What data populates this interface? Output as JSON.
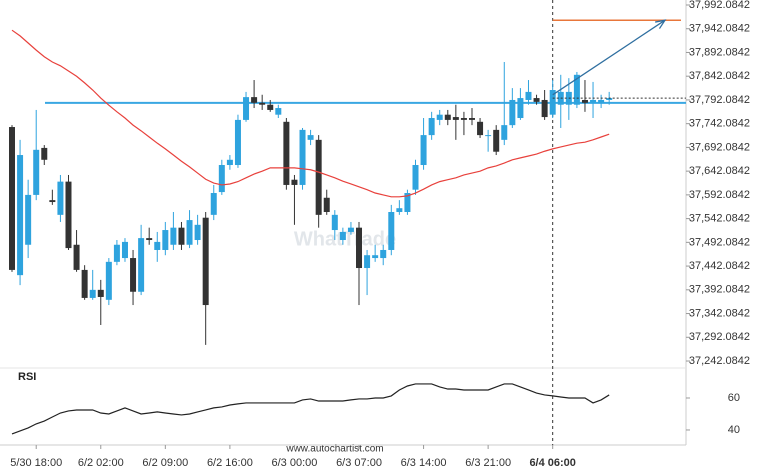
{
  "chart_data": [
    {
      "type": "candlestick",
      "categories": [
        null,
        null,
        null,
        "5/30 18:00",
        null,
        null,
        null,
        null,
        null,
        null,
        null,
        "6/2 02:00",
        null,
        null,
        null,
        null,
        null,
        null,
        null,
        "6/2 09:00",
        null,
        null,
        null,
        null,
        null,
        null,
        null,
        "6/2 16:00",
        null,
        null,
        null,
        null,
        null,
        null,
        null,
        "6/3 00:00",
        null,
        null,
        null,
        null,
        null,
        null,
        null,
        "6/3 07:00",
        null,
        null,
        null,
        null,
        null,
        null,
        null,
        "6/3 14:00",
        null,
        null,
        null,
        null,
        null,
        null,
        null,
        "6/3 21:00",
        null,
        null,
        null,
        null,
        null,
        null,
        null,
        "6/4 06:00",
        null,
        null,
        null,
        null,
        null,
        null,
        null
      ],
      "candles": {
        "up_color": "#2ea3de",
        "down_color": "#333333",
        "open": [
          37735,
          37423,
          37487,
          37592,
          37691,
          37581,
          37550,
          37620,
          37487,
          37434,
          37375,
          37392,
          37371,
          37451,
          37459,
          37459,
          37388,
          37501,
          37476,
          37476,
          37487,
          37523,
          37487,
          37497,
          37544,
          37550,
          37598,
          37655,
          37655,
          37750,
          37798,
          37786,
          37782,
          37761,
          37746,
          37624,
          37613,
          37708,
          37708,
          37586,
          37518,
          37497,
          37514,
          37523,
          37438,
          37459,
          37459,
          37476,
          37556,
          37556,
          37603,
          37655,
          37718,
          37750,
          37761,
          37756,
          37754,
          37754,
          37746,
          37718,
          37729,
          37708,
          37739,
          37754,
          37792,
          37796,
          37792,
          37761,
          37782,
          37782,
          37782,
          37792,
          37786,
          37786,
          37792
        ],
        "high": [
          37739,
          37708,
          37624,
          37771,
          37697,
          37603,
          37634,
          37634,
          37518,
          37444,
          37434,
          37413,
          37459,
          37497,
          37501,
          37476,
          37529,
          37523,
          37514,
          37535,
          37556,
          37535,
          37560,
          37550,
          37556,
          37613,
          37666,
          37676,
          37761,
          37809,
          37834,
          37803,
          37792,
          37782,
          37754,
          37634,
          37733,
          37729,
          37718,
          37603,
          37560,
          37523,
          37535,
          37535,
          37476,
          37487,
          37487,
          37571,
          37581,
          37603,
          37666,
          37754,
          37767,
          37771,
          37771,
          37782,
          37767,
          37775,
          37754,
          37729,
          37739,
          37872,
          37817,
          37817,
          37834,
          37803,
          37813,
          37834,
          37845,
          37838,
          37851,
          37834,
          37830,
          37803,
          37809
        ],
        "low": [
          37430,
          37402,
          37459,
          37581,
          37655,
          37571,
          37535,
          37476,
          37430,
          37371,
          37371,
          37318,
          37360,
          37444,
          37451,
          37360,
          37381,
          37487,
          37451,
          37465,
          37476,
          37476,
          37480,
          37487,
          37276,
          37539,
          37592,
          37645,
          37649,
          37746,
          37775,
          37771,
          37767,
          37754,
          37603,
          37529,
          37603,
          37697,
          37523,
          37550,
          37497,
          37487,
          37508,
          37360,
          37381,
          37451,
          37444,
          37465,
          37550,
          37550,
          37592,
          37645,
          37708,
          37739,
          37739,
          37708,
          37718,
          37739,
          37712,
          37683,
          37676,
          37697,
          37733,
          37750,
          37782,
          37782,
          37750,
          37754,
          37733,
          37750,
          37775,
          37767,
          37754,
          37775,
          37782
        ],
        "close": [
          37434,
          37676,
          37592,
          37687,
          37666,
          37577,
          37620,
          37480,
          37434,
          37375,
          37392,
          37377,
          37451,
          37487,
          37493,
          37388,
          37501,
          37497,
          37493,
          37518,
          37523,
          37487,
          37539,
          37529,
          37360,
          37596,
          37655,
          37666,
          37750,
          37798,
          37786,
          37782,
          37771,
          37775,
          37613,
          37613,
          37729,
          37718,
          37550,
          37556,
          37550,
          37514,
          37523,
          37438,
          37465,
          37465,
          37476,
          37556,
          37564,
          37596,
          37655,
          37718,
          37754,
          37761,
          37750,
          37750,
          37750,
          37750,
          37718,
          37718,
          37683,
          37739,
          37792,
          37796,
          37809,
          37788,
          37756,
          37813,
          37809,
          37809,
          37845,
          37786,
          37792,
          37792,
          37796
        ]
      },
      "ma": {
        "color": "#e8413c",
        "values": [
          37939,
          37927,
          37912,
          37897,
          37883,
          37872,
          37864,
          37853,
          37842,
          37828,
          37813,
          37796,
          37781,
          37767,
          37754,
          37739,
          37727,
          37714,
          37701,
          37689,
          37676,
          37663,
          37651,
          37638,
          37625,
          37617,
          37613,
          37615,
          37620,
          37628,
          37636,
          37642,
          37649,
          37649,
          37649,
          37649,
          37647,
          37645,
          37640,
          37634,
          37628,
          37621,
          37615,
          37609,
          37603,
          37596,
          37592,
          37588,
          37588,
          37590,
          37596,
          37604,
          37613,
          37620,
          37624,
          37628,
          37634,
          37638,
          37642,
          37649,
          37653,
          37659,
          37666,
          37670,
          37674,
          37678,
          37684,
          37689,
          37693,
          37697,
          37701,
          37703,
          37708,
          37714,
          37720
        ]
      },
      "level": 37786,
      "level_color": "#3aa7e2",
      "target": 37960,
      "target_color": "#e8763a",
      "arrow_color": "#2f6fa0",
      "ylim": [
        37233.7,
        38002.6
      ],
      "yticks": [
        {
          "value": 37992.0842,
          "label": "37,992.0842"
        },
        {
          "value": 37942.0842,
          "label": "37,942.0842"
        },
        {
          "value": 37892.0842,
          "label": "37,892.0842"
        },
        {
          "value": 37842.0842,
          "label": "37,842.0842"
        },
        {
          "value": 37792.0842,
          "label": "37,792.0842"
        },
        {
          "value": 37742.0842,
          "label": "37,742.0842"
        },
        {
          "value": 37692.0842,
          "label": "37,692.0842"
        },
        {
          "value": 37642.0842,
          "label": "37,642.0842"
        },
        {
          "value": 37592.0842,
          "label": "37,592.0842"
        },
        {
          "value": 37542.0842,
          "label": "37,542.0842"
        },
        {
          "value": 37492.0842,
          "label": "37,492.0842"
        },
        {
          "value": 37442.0842,
          "label": "37,442.0842"
        },
        {
          "value": 37392.0842,
          "label": "37,392.0842"
        },
        {
          "value": 37342.0842,
          "label": "37,342.0842"
        },
        {
          "value": 37292.0842,
          "label": "37,292.0842"
        },
        {
          "value": 37242.0842,
          "label": "37,242.0842"
        }
      ],
      "watermark": "WhatTrade",
      "source": "www.autochartist.com"
    },
    {
      "type": "line",
      "title": "RSI",
      "color": "#222222",
      "values": [
        37.5,
        39.4,
        41.3,
        43.8,
        45.6,
        48.1,
        50.6,
        51.9,
        52.5,
        52.5,
        52.5,
        50.6,
        50,
        51.9,
        53.8,
        51.9,
        50,
        50.6,
        51.3,
        50.6,
        50,
        49.4,
        50,
        51.3,
        52.5,
        53.8,
        54.4,
        55.6,
        56.3,
        56.9,
        56.9,
        56.9,
        56.9,
        56.9,
        56.9,
        56.9,
        58.8,
        59.4,
        58.1,
        58.1,
        58.1,
        58.1,
        58.8,
        59.4,
        59.4,
        60,
        60,
        61.3,
        65,
        67.5,
        68.8,
        68.8,
        68.8,
        66.9,
        65.6,
        65.6,
        65,
        65,
        65,
        65,
        66.9,
        68.8,
        68.8,
        66.9,
        65,
        63.1,
        61.9,
        61.3,
        60.6,
        60,
        60,
        60,
        56.9,
        58.8,
        61.9
      ],
      "ylim": [
        30.6,
        77.5
      ],
      "yticks": [
        40,
        60
      ]
    }
  ]
}
